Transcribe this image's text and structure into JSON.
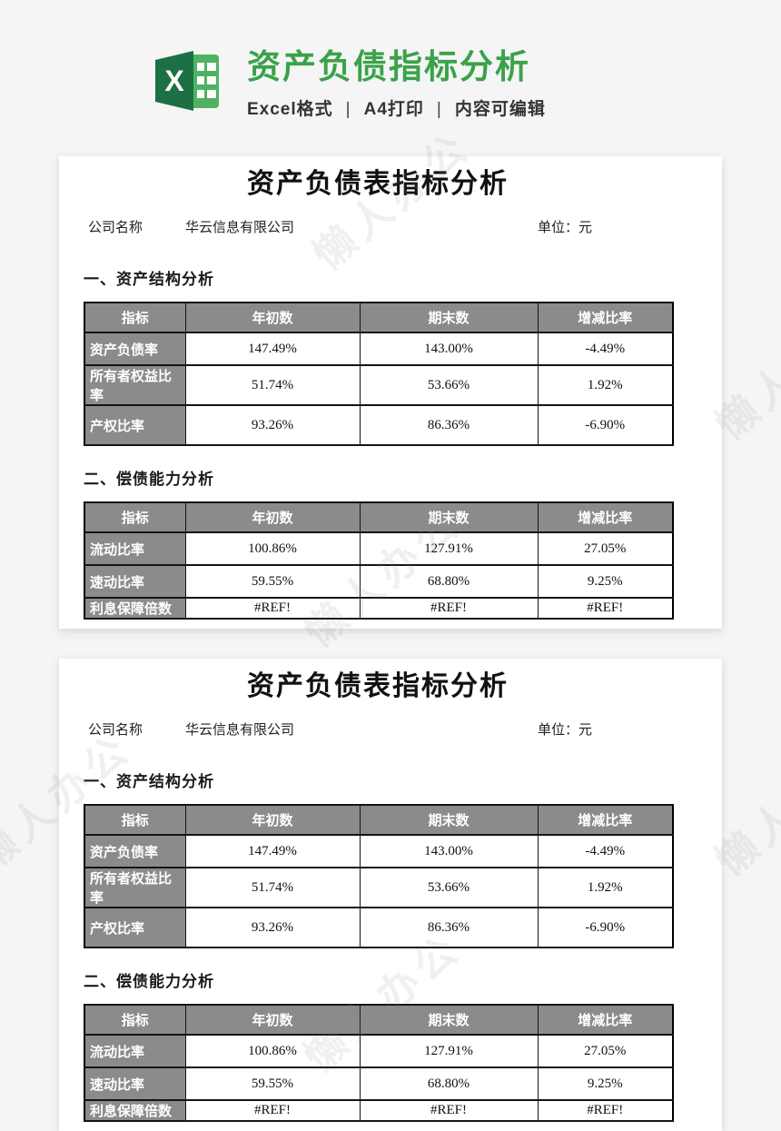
{
  "page": {
    "background": "#f5f5f6"
  },
  "header": {
    "icon": "excel-logo-icon",
    "icon_colors": {
      "dark_green": "#1d7044",
      "light_green": "#4fb261"
    },
    "title": "资产负债指标分析",
    "title_color": "#3aa24a",
    "separator": "|",
    "subtitle_parts": [
      "Excel格式",
      "A4打印",
      "内容可编辑"
    ]
  },
  "watermark": {
    "text": "懒人办公"
  },
  "document": {
    "title": "资产负债表指标分析",
    "company_label": "公司名称",
    "company_name": "华云信息有限公司",
    "unit_label": "单位：元",
    "table_colors": {
      "header_bg": "#8b8b8b",
      "header_text": "#ffffff",
      "border": "#141414"
    },
    "sections": [
      {
        "heading": "一、资产结构分析",
        "table": {
          "headers": [
            "指标",
            "年初数",
            "期末数",
            "增减比率"
          ],
          "rows": [
            [
              "资产负债率",
              "147.49%",
              "143.00%",
              "-4.49%"
            ],
            [
              "所有者权益比率",
              "51.74%",
              "53.66%",
              "1.92%"
            ],
            [
              "产权比率",
              "93.26%",
              "86.36%",
              "-6.90%"
            ]
          ]
        }
      },
      {
        "heading": "二、偿债能力分析",
        "table": {
          "headers": [
            "指标",
            "年初数",
            "期末数",
            "增减比率"
          ],
          "rows": [
            [
              "流动比率",
              "100.86%",
              "127.91%",
              "27.05%"
            ],
            [
              "速动比率",
              "59.55%",
              "68.80%",
              "9.25%"
            ],
            [
              "利息保障倍数",
              "#REF!",
              "#REF!",
              "#REF!"
            ]
          ]
        }
      }
    ]
  }
}
